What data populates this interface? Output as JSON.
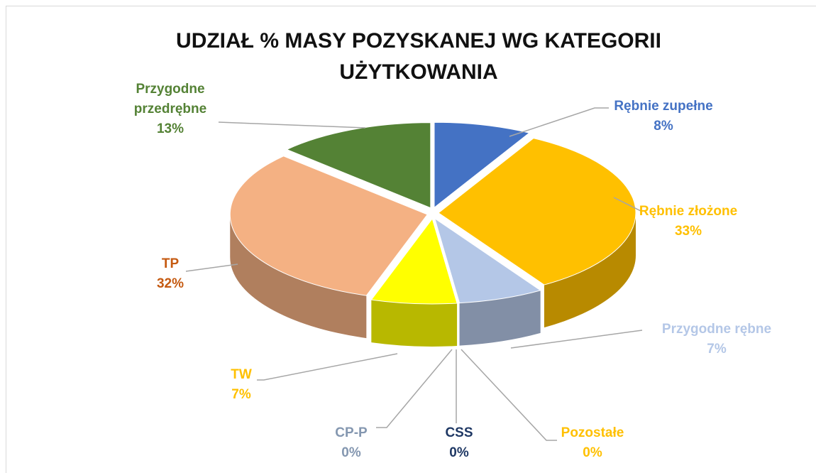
{
  "chart_data": {
    "type": "pie",
    "title": "UDZIAŁ % MASY POZYSKANEJ WG KATEGORII UŻYTKOWANIA",
    "categories": [
      "Rębnie zupełne",
      "Rębnie złożone",
      "Przygodne rębne",
      "Pozostałe",
      "CSS",
      "CP-P",
      "TW",
      "TP",
      "Przygodne przedrębne"
    ],
    "values": [
      8,
      33,
      7,
      0,
      0,
      0,
      7,
      32,
      13
    ],
    "value_labels": [
      "8%",
      "33%",
      "7%",
      "0%",
      "0%",
      "0%",
      "7%",
      "32%",
      "13%"
    ],
    "colors": [
      "#4472c4",
      "#ffc000",
      "#b4c7e7",
      "#f4a42c",
      "#1f3864",
      "#8faadc",
      "#ffff00",
      "#f4b183",
      "#548235"
    ],
    "label_colors": [
      "#4472c4",
      "#ffc000",
      "#b4c7e7",
      "#ffc000",
      "#1f3864",
      "#8497b0",
      "#ffc000",
      "#c55a11",
      "#548235"
    ]
  }
}
